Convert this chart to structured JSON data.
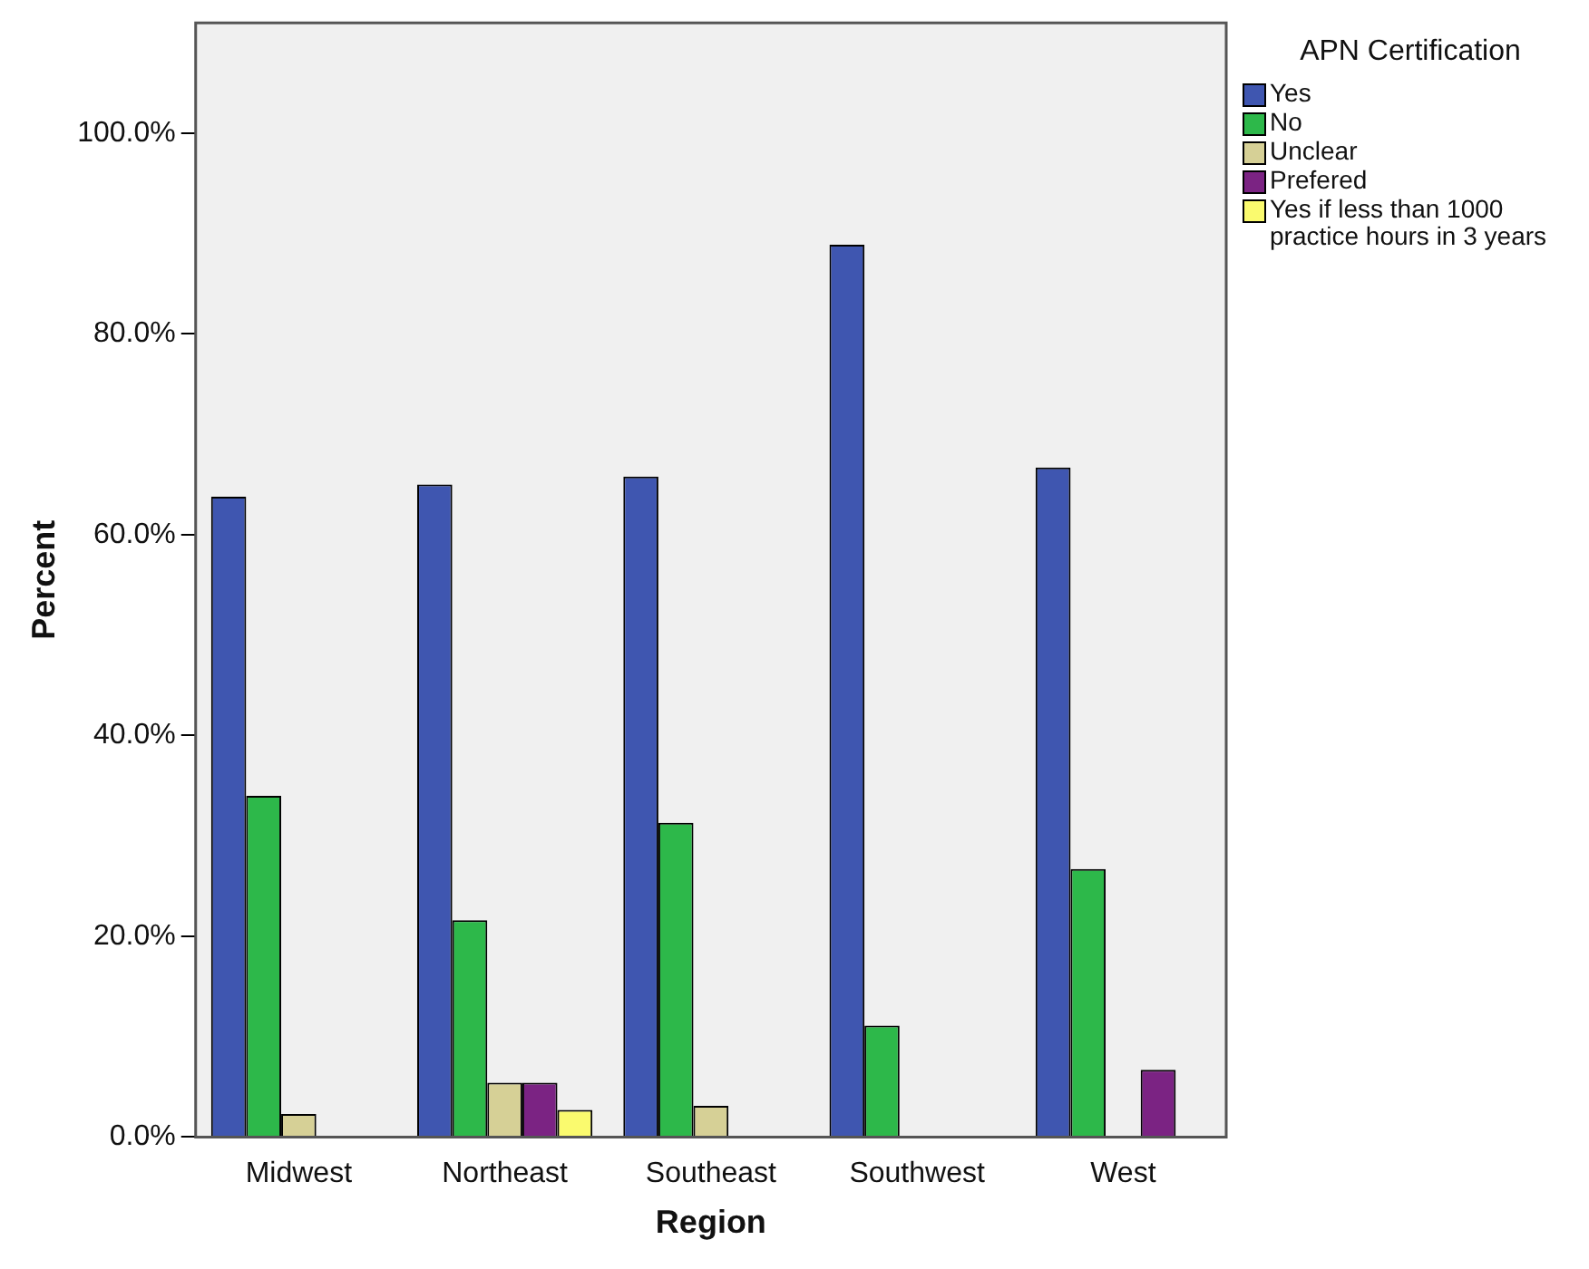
{
  "chart_data": {
    "type": "bar",
    "xlabel": "Region",
    "ylabel": "Percent",
    "legend_title": "APN Certification",
    "legend": "top right",
    "grid": false,
    "categories": [
      "Midwest",
      "Northeast",
      "Southeast",
      "Southwest",
      "West"
    ],
    "series": [
      {
        "name": "Yes",
        "color": "#3f56b0",
        "values": [
          63.8,
          65.0,
          65.8,
          88.9,
          66.7
        ]
      },
      {
        "name": "No",
        "color": "#2db84a",
        "values": [
          34.0,
          21.6,
          31.3,
          11.1,
          26.7
        ]
      },
      {
        "name": "Unclear",
        "color": "#d6d096",
        "values": [
          2.3,
          5.4,
          3.1,
          0,
          0
        ]
      },
      {
        "name": "Prefered",
        "color": "#7b2383",
        "values": [
          0,
          5.4,
          0,
          0,
          6.7
        ]
      },
      {
        "name": "Yes if less than 1000 practice hours in 3 years",
        "color": "#fafa6e",
        "values": [
          0,
          2.7,
          0,
          0,
          0
        ]
      }
    ],
    "ylim": [
      0,
      111
    ],
    "yticks": [
      {
        "value": 0,
        "label": "0.0%"
      },
      {
        "value": 20,
        "label": "20.0%"
      },
      {
        "value": 40,
        "label": "40.0%"
      },
      {
        "value": 60,
        "label": "60.0%"
      },
      {
        "value": 80,
        "label": "80.0%"
      },
      {
        "value": 100,
        "label": "100.0%"
      }
    ]
  }
}
